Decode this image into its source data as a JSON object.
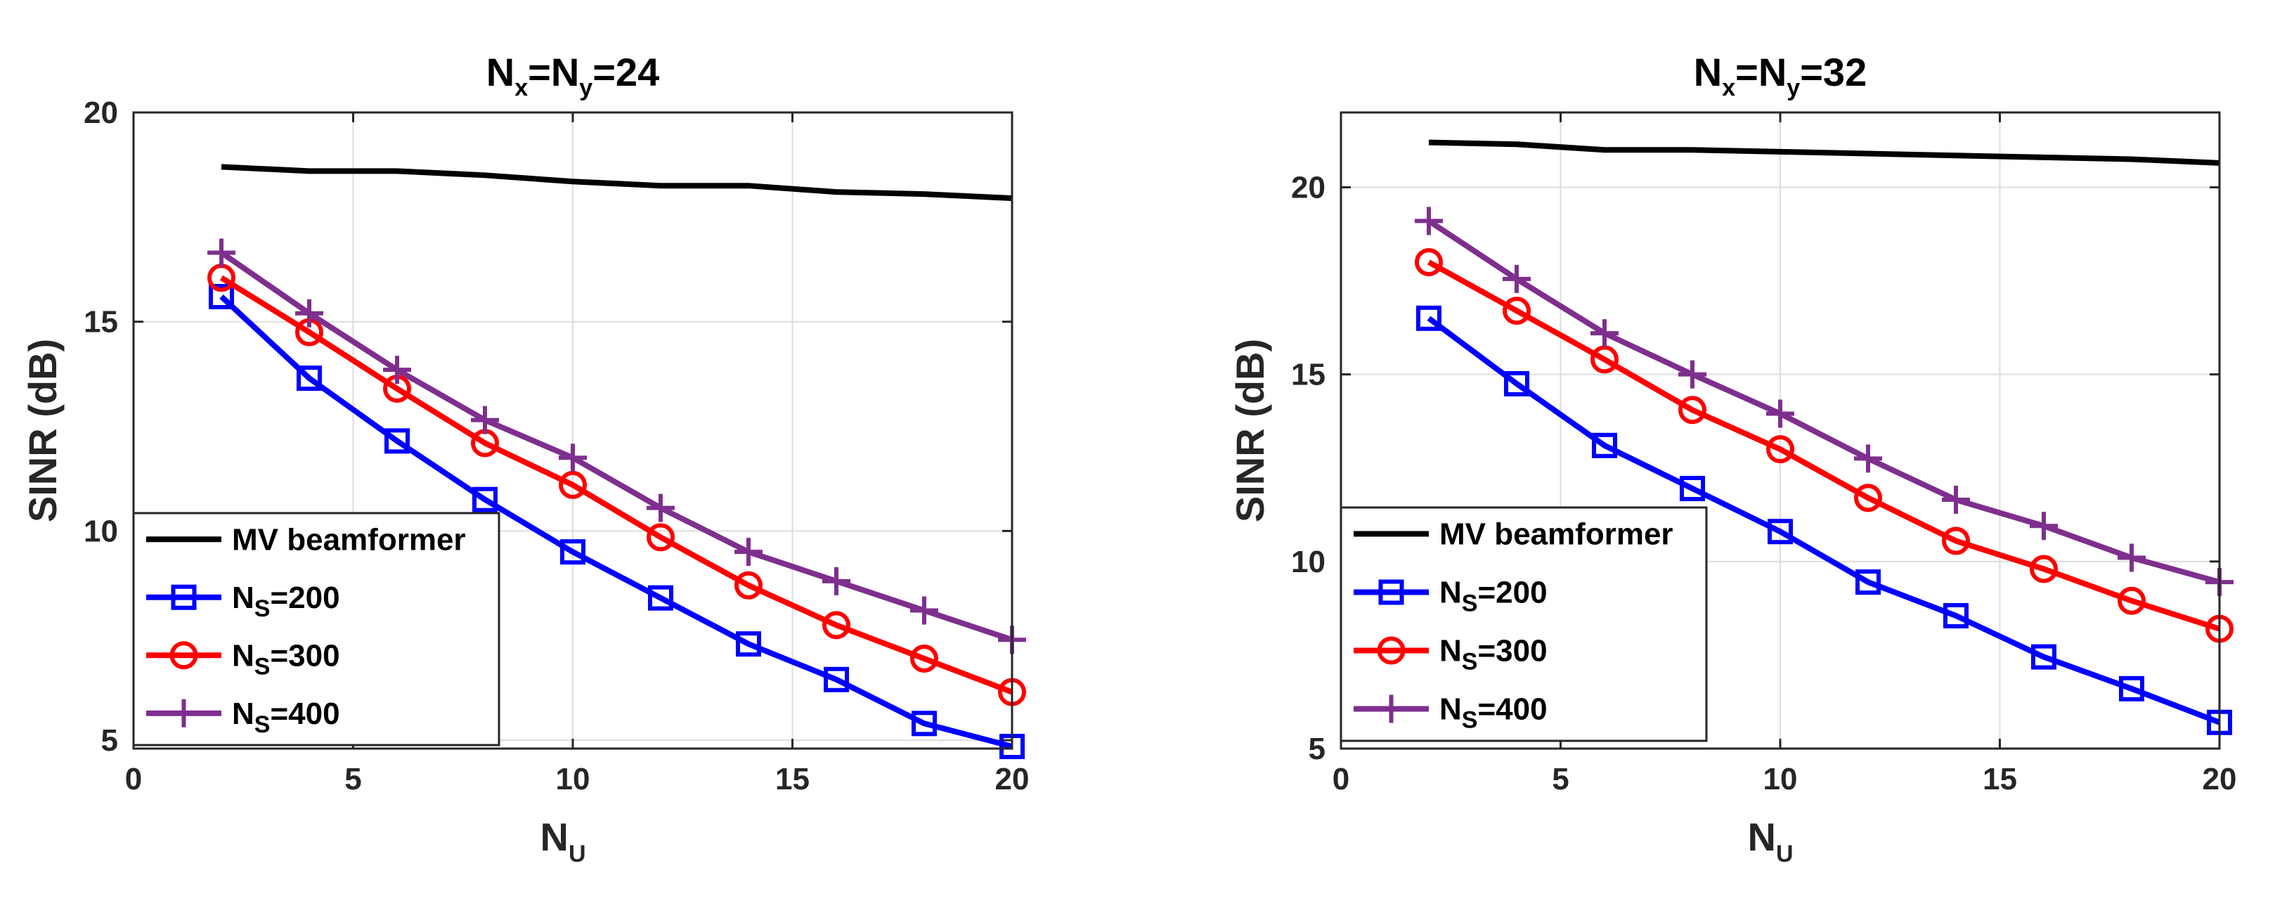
{
  "colors": {
    "mv": "#000000",
    "ns200": "#0000FF",
    "ns300": "#FF0000",
    "ns400": "#7E2F8E",
    "grid": "#DDDDDD",
    "axis": "#262626"
  },
  "chart_data": [
    {
      "type": "line",
      "title": {
        "main": "N",
        "sub1": "x",
        "mid": "=N",
        "sub2": "y",
        "tail": "=24"
      },
      "xlabel": {
        "main": "N",
        "sub": "U"
      },
      "ylabel": "SINR (dB)",
      "xlim": [
        0,
        20
      ],
      "ylim": [
        4.8,
        20
      ],
      "xticks": [
        0,
        5,
        10,
        15,
        20
      ],
      "yticks": [
        5,
        10,
        15,
        20
      ],
      "grid": true,
      "legend_position": "bottom-left",
      "x": [
        2,
        4,
        6,
        8,
        10,
        12,
        14,
        16,
        18,
        20
      ],
      "series": [
        {
          "key": "mv",
          "name": "MV beamformer",
          "label_main": "MV beamformer",
          "label_sub": "",
          "label_tail": "",
          "marker": "none",
          "values": [
            18.7,
            18.6,
            18.6,
            18.5,
            18.35,
            18.25,
            18.25,
            18.1,
            18.05,
            17.95
          ]
        },
        {
          "key": "ns200",
          "name": "N_S=200",
          "label_main": "N",
          "label_sub": "S",
          "label_tail": "=200",
          "marker": "square",
          "values": [
            15.6,
            13.65,
            12.15,
            10.75,
            9.5,
            8.4,
            7.3,
            6.45,
            5.4,
            4.85
          ]
        },
        {
          "key": "ns300",
          "name": "N_S=300",
          "label_main": "N",
          "label_sub": "S",
          "label_tail": "=300",
          "marker": "circle",
          "values": [
            16.05,
            14.75,
            13.4,
            12.1,
            11.1,
            9.85,
            8.7,
            7.75,
            6.95,
            6.15
          ]
        },
        {
          "key": "ns400",
          "name": "N_S=400",
          "label_main": "N",
          "label_sub": "S",
          "label_tail": "=400",
          "marker": "plus",
          "values": [
            16.65,
            15.2,
            13.85,
            12.65,
            11.75,
            10.55,
            9.5,
            8.8,
            8.1,
            7.4
          ]
        }
      ]
    },
    {
      "type": "line",
      "title": {
        "main": "N",
        "sub1": "x",
        "mid": "=N",
        "sub2": "y",
        "tail": "=32"
      },
      "xlabel": {
        "main": "N",
        "sub": "U"
      },
      "ylabel": "SINR (dB)",
      "xlim": [
        0,
        20
      ],
      "ylim": [
        5,
        22
      ],
      "xticks": [
        0,
        5,
        10,
        15,
        20
      ],
      "yticks": [
        5,
        10,
        15,
        20
      ],
      "grid": true,
      "legend_position": "bottom-left",
      "x": [
        2,
        4,
        6,
        8,
        10,
        12,
        14,
        16,
        18,
        20
      ],
      "series": [
        {
          "key": "mv",
          "name": "MV beamformer",
          "label_main": "MV beamformer",
          "label_sub": "",
          "label_tail": "",
          "marker": "none",
          "values": [
            21.2,
            21.15,
            21.0,
            21.0,
            20.95,
            20.9,
            20.85,
            20.8,
            20.75,
            20.65
          ]
        },
        {
          "key": "ns200",
          "name": "N_S=200",
          "label_main": "N",
          "label_sub": "S",
          "label_tail": "=200",
          "marker": "square",
          "values": [
            16.5,
            14.75,
            13.1,
            11.95,
            10.8,
            9.45,
            8.55,
            7.45,
            6.6,
            5.7
          ]
        },
        {
          "key": "ns300",
          "name": "N_S=300",
          "label_main": "N",
          "label_sub": "S",
          "label_tail": "=300",
          "marker": "circle",
          "values": [
            18.0,
            16.7,
            15.4,
            14.05,
            13.0,
            11.7,
            10.55,
            9.8,
            8.95,
            8.2
          ]
        },
        {
          "key": "ns400",
          "name": "N_S=400",
          "label_main": "N",
          "label_sub": "S",
          "label_tail": "=400",
          "marker": "plus",
          "values": [
            19.1,
            17.55,
            16.1,
            15.0,
            13.95,
            12.75,
            11.65,
            10.95,
            10.1,
            9.45
          ]
        }
      ]
    }
  ]
}
